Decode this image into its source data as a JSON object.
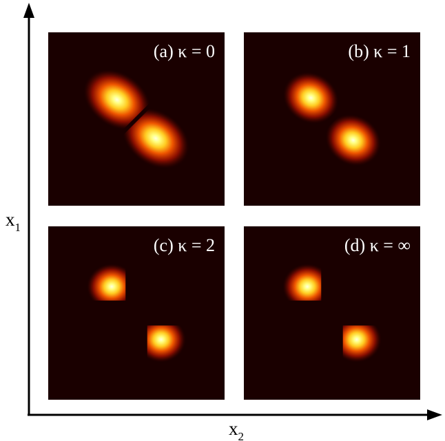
{
  "figure": {
    "axes": {
      "x_label": "x",
      "x_subscript": "2",
      "y_label": "x",
      "y_subscript": "1"
    }
  },
  "chart_data": [
    {
      "type": "heatmap",
      "title": "(a) κ = 0",
      "kappa": "0",
      "colormap": "hot",
      "lobes": [
        {
          "x": -0.22,
          "y": 0.22,
          "sx": 0.19,
          "sy": 0.14,
          "angle_deg": -35,
          "cut": "hard-diagonal-node"
        },
        {
          "x": 0.22,
          "y": -0.22,
          "sx": 0.19,
          "sy": 0.14,
          "angle_deg": -35,
          "cut": "hard-diagonal-node"
        }
      ]
    },
    {
      "type": "heatmap",
      "title": "(b) κ = 1",
      "kappa": "1",
      "colormap": "hot",
      "lobes": [
        {
          "x": -0.24,
          "y": 0.24,
          "sx": 0.15,
          "sy": 0.13,
          "angle_deg": -30,
          "cut": "soft-diagonal-node"
        },
        {
          "x": 0.24,
          "y": -0.24,
          "sx": 0.15,
          "sy": 0.13,
          "angle_deg": -30,
          "cut": "soft-diagonal-node"
        }
      ]
    },
    {
      "type": "heatmap",
      "title": "(c) κ = 2",
      "kappa": "2",
      "colormap": "hot",
      "lobes": [
        {
          "x": -0.28,
          "y": 0.3,
          "sx": 0.13,
          "sy": 0.12,
          "angle_deg": 0,
          "cut": "quadrant"
        },
        {
          "x": 0.28,
          "y": -0.3,
          "sx": 0.13,
          "sy": 0.12,
          "angle_deg": 0,
          "cut": "quadrant"
        }
      ]
    },
    {
      "type": "heatmap",
      "title": "(d) κ = ∞",
      "kappa": "∞",
      "colormap": "hot",
      "lobes": [
        {
          "x": -0.28,
          "y": 0.3,
          "sx": 0.13,
          "sy": 0.12,
          "angle_deg": 0,
          "cut": "quadrant"
        },
        {
          "x": 0.28,
          "y": -0.3,
          "sx": 0.13,
          "sy": 0.12,
          "angle_deg": 0,
          "cut": "quadrant"
        }
      ]
    }
  ]
}
